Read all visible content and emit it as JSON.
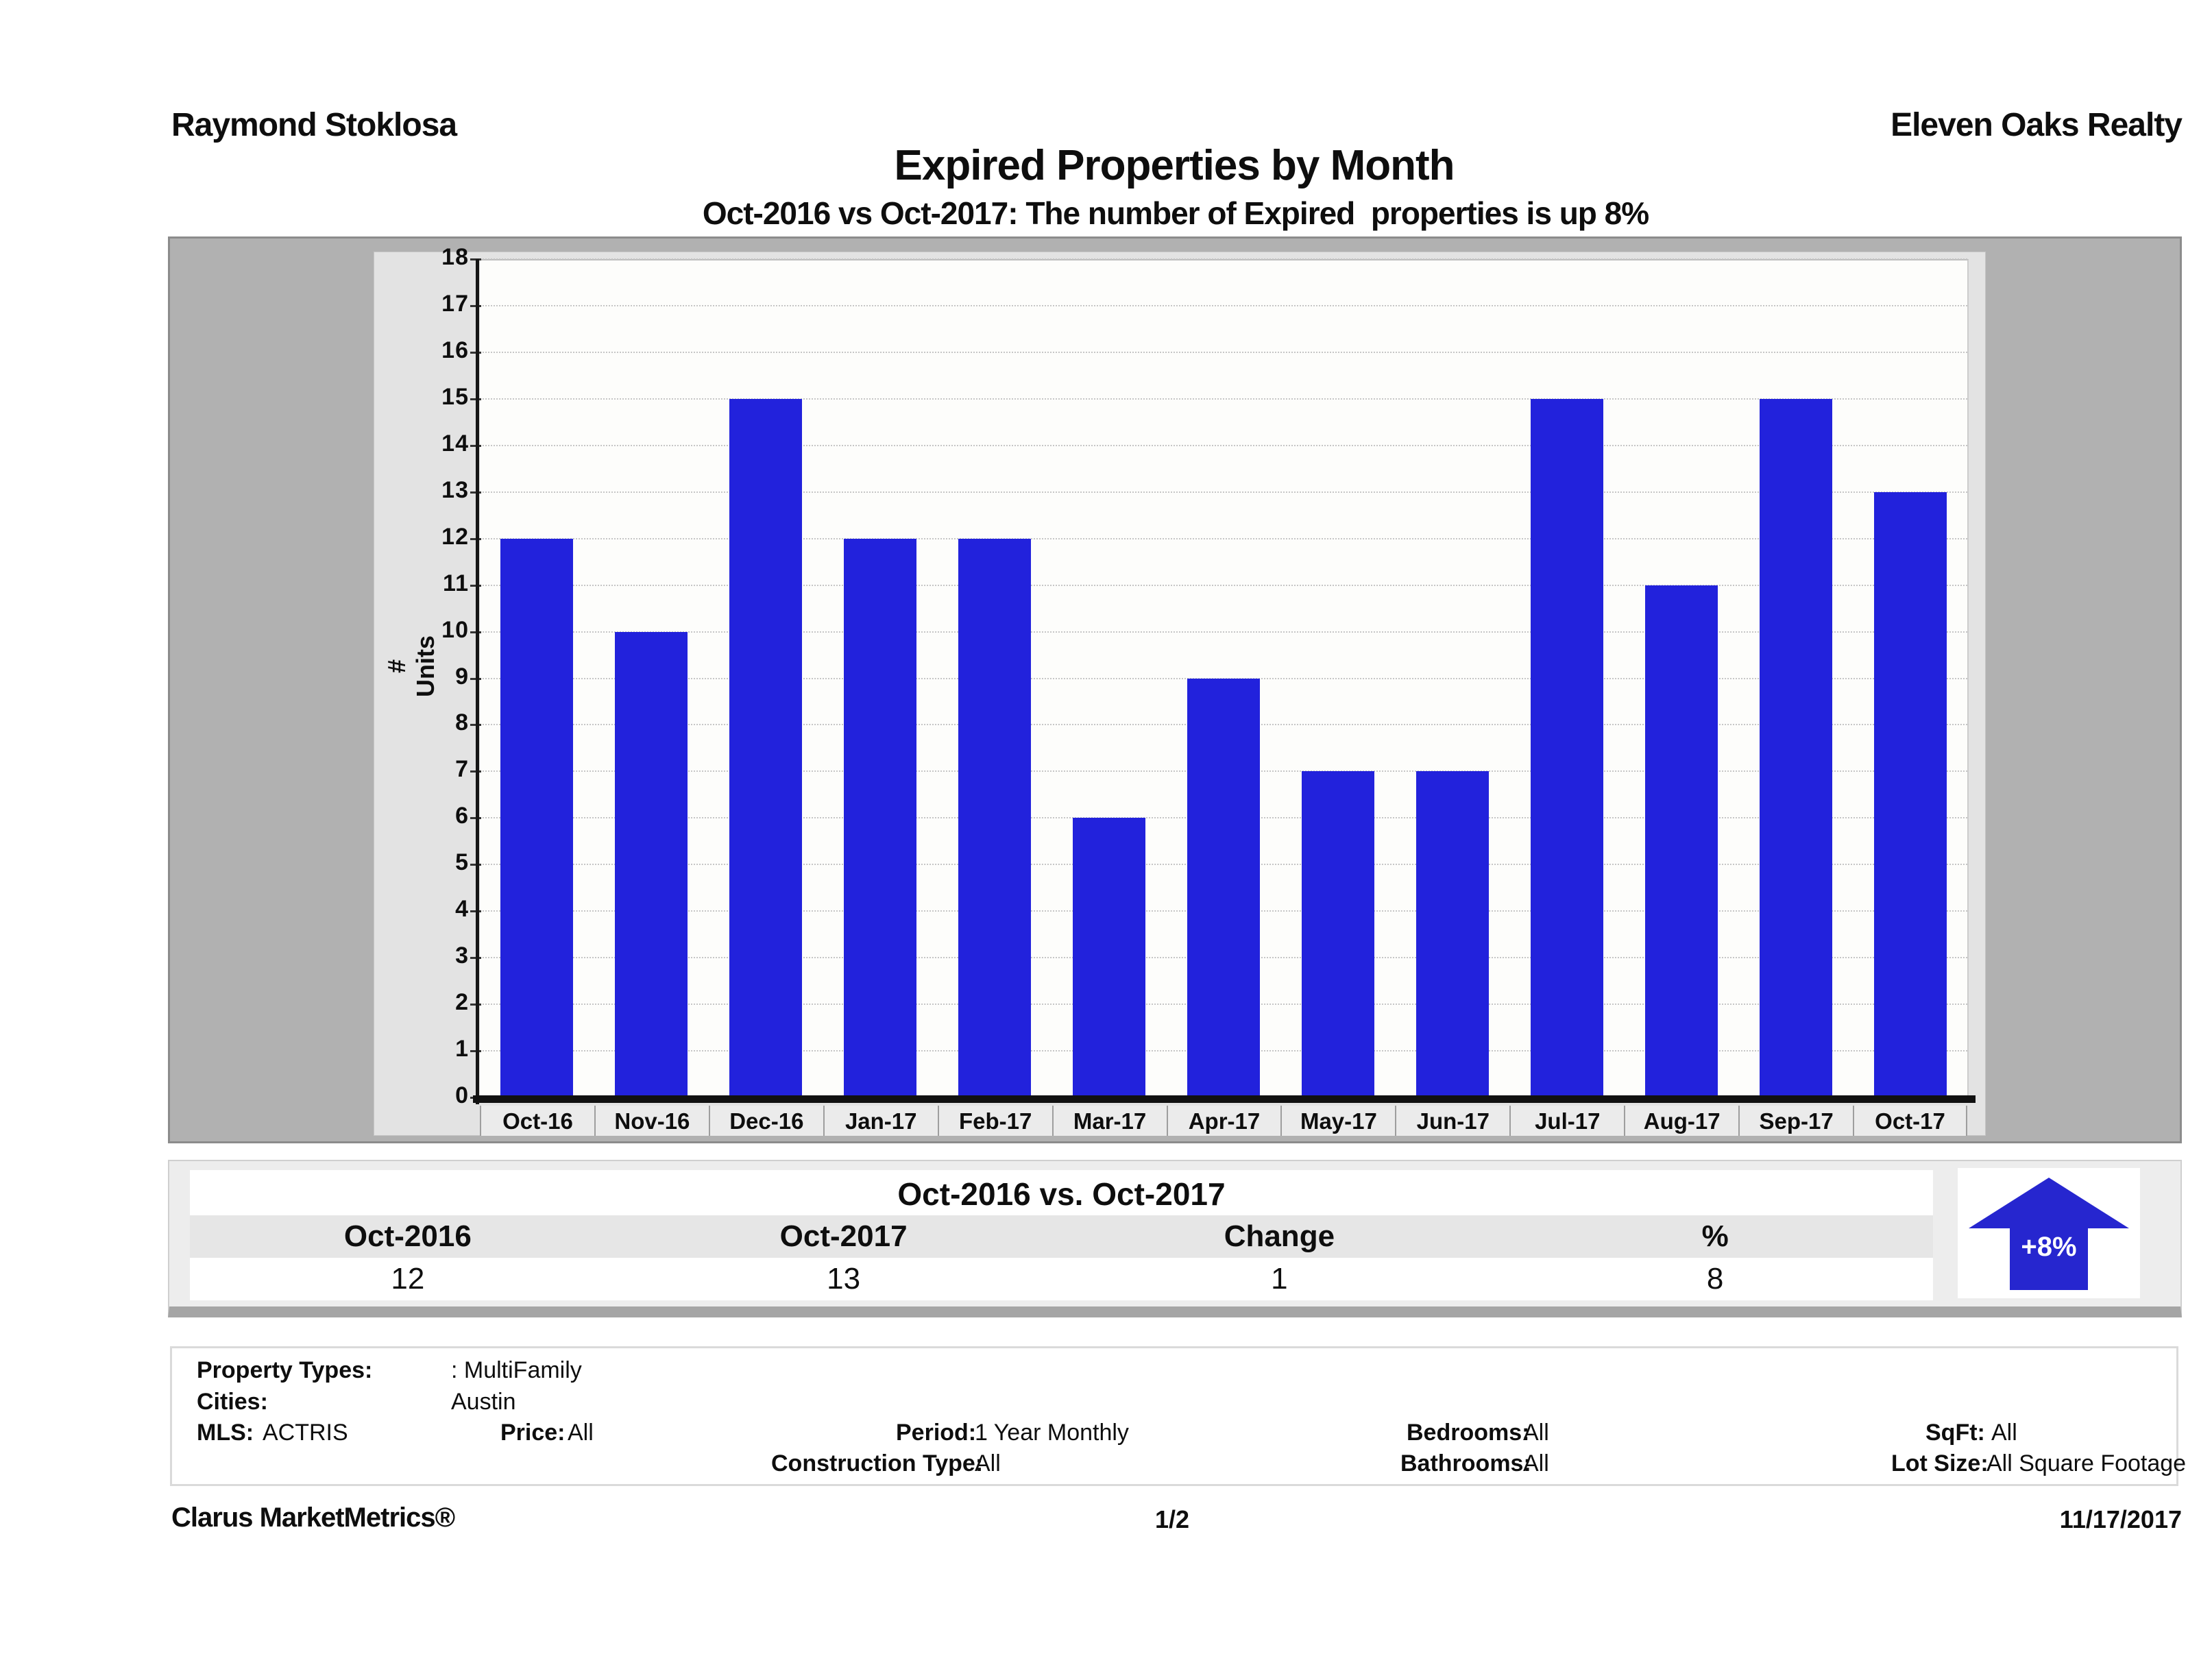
{
  "header": {
    "agent_name": "Raymond Stoklosa",
    "company_name": "Eleven Oaks Realty",
    "title": "Expired Properties by Month",
    "subtitle": "Oct-2016 vs Oct-2017: The number of Expired  properties is up 8%"
  },
  "chart_data": {
    "type": "bar",
    "title": "Expired Properties by Month",
    "categories": [
      "Oct-16",
      "Nov-16",
      "Dec-16",
      "Jan-17",
      "Feb-17",
      "Mar-17",
      "Apr-17",
      "May-17",
      "Jun-17",
      "Jul-17",
      "Aug-17",
      "Sep-17",
      "Oct-17"
    ],
    "values": [
      12,
      10,
      15,
      12,
      12,
      6,
      9,
      7,
      7,
      15,
      11,
      15,
      13
    ],
    "xlabel": "",
    "ylabel": "# Units",
    "ylim": [
      0,
      18
    ],
    "ytick_step": 1,
    "grid": "horizontal-dotted",
    "legend": "none",
    "bar_color": "#2222dc"
  },
  "summary_table": {
    "title": "Oct-2016 vs. Oct-2017",
    "columns": [
      "Oct-2016",
      "Oct-2017",
      "Change",
      "%"
    ],
    "values": [
      "12",
      "13",
      "1",
      "8"
    ],
    "badge": {
      "label": "+8%",
      "direction": "up",
      "color": "#2626cf"
    }
  },
  "filters": {
    "property_types_label": "Property Types:",
    "property_types_value": ": MultiFamily",
    "cities_label": "Cities:",
    "cities_value": "Austin",
    "mls_label": "MLS:",
    "mls_value": "ACTRIS",
    "price_label": "Price:",
    "price_value": "All",
    "period_label": "Period:",
    "period_value": "1 Year Monthly",
    "construction_label": "Construction Type:",
    "construction_value": "All",
    "bedrooms_label": "Bedrooms:",
    "bedrooms_value": "All",
    "bathrooms_label": "Bathrooms:",
    "bathrooms_value": "All",
    "sqft_label": "SqFt:",
    "sqft_value": "All",
    "lot_size_label": "Lot Size:",
    "lot_size_value": "All Square Footage"
  },
  "footer": {
    "brand": "Clarus MarketMetrics®",
    "page": "1/2",
    "date": "11/17/2017"
  }
}
